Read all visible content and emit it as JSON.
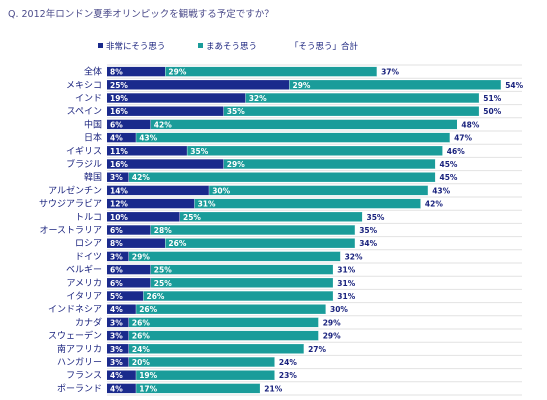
{
  "question": "Q. 2012年ロンドン夏季オリンピックを観戦する予定ですか？",
  "colors": {
    "s1": "#1a2a8c",
    "s2": "#1a9c9a",
    "line": "#e2e2e2",
    "text": "#1a237e"
  },
  "chart_data": {
    "type": "bar",
    "orientation": "horizontal",
    "stacked": true,
    "categories": [
      "全体",
      "メキシコ",
      "インド",
      "スペイン",
      "中国",
      "日本",
      "イギリス",
      "ブラジル",
      "韓国",
      "アルゼンチン",
      "サウジアラビア",
      "トルコ",
      "オーストラリア",
      "ロシア",
      "ドイツ",
      "ベルギー",
      "アメリカ",
      "イタリア",
      "インドネシア",
      "カナダ",
      "スウェーデン",
      "南アフリカ",
      "ハンガリー",
      "フランス",
      "ポーランド"
    ],
    "series": [
      {
        "name": "非常にそう思う",
        "values": [
          8,
          25,
          19,
          16,
          6,
          4,
          11,
          16,
          3,
          14,
          12,
          10,
          6,
          8,
          3,
          6,
          6,
          5,
          4,
          3,
          3,
          3,
          3,
          4,
          4
        ]
      },
      {
        "name": "まあそう思う",
        "values": [
          29,
          29,
          32,
          35,
          42,
          43,
          35,
          29,
          42,
          30,
          31,
          25,
          28,
          26,
          29,
          25,
          25,
          26,
          26,
          26,
          26,
          24,
          20,
          19,
          17
        ]
      }
    ],
    "totals_label": "「そう思う」合計",
    "totals": [
      37,
      54,
      51,
      50,
      48,
      47,
      46,
      45,
      45,
      43,
      42,
      35,
      35,
      34,
      32,
      31,
      31,
      31,
      30,
      29,
      29,
      27,
      24,
      23,
      21
    ],
    "value_suffix": "%",
    "xlim": [
      0,
      54
    ]
  }
}
